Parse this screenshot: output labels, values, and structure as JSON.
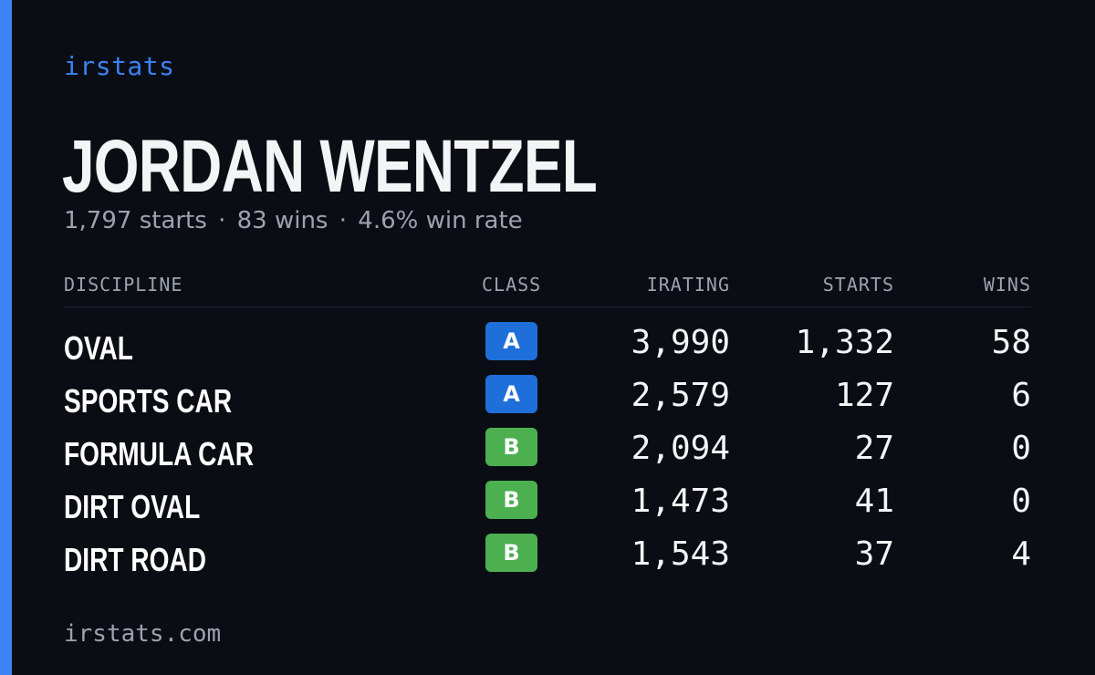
{
  "brand": "irstats",
  "driver": {
    "name": "JORDAN WENTZEL",
    "starts_text": "1,797 starts",
    "wins_text": "83 wins",
    "win_rate_text": "4.6% win rate",
    "separator": "·"
  },
  "table": {
    "headers": {
      "discipline": "DISCIPLINE",
      "class": "CLASS",
      "irating": "IRATING",
      "starts": "STARTS",
      "wins": "WINS"
    },
    "rows": [
      {
        "discipline": "OVAL",
        "class": "A",
        "irating": "3,990",
        "starts": "1,332",
        "wins": "58"
      },
      {
        "discipline": "SPORTS CAR",
        "class": "A",
        "irating": "2,579",
        "starts": "127",
        "wins": "6"
      },
      {
        "discipline": "FORMULA CAR",
        "class": "B",
        "irating": "2,094",
        "starts": "27",
        "wins": "0"
      },
      {
        "discipline": "DIRT OVAL",
        "class": "B",
        "irating": "1,473",
        "starts": "41",
        "wins": "0"
      },
      {
        "discipline": "DIRT ROAD",
        "class": "B",
        "irating": "1,543",
        "starts": "37",
        "wins": "4"
      }
    ]
  },
  "footer": "irstats.com",
  "colors": {
    "background": "#0b0d14",
    "accent": "#3b82f6",
    "class_a": "#1e6fd9",
    "class_b": "#4caf50",
    "muted_text": "#9ca3af"
  }
}
